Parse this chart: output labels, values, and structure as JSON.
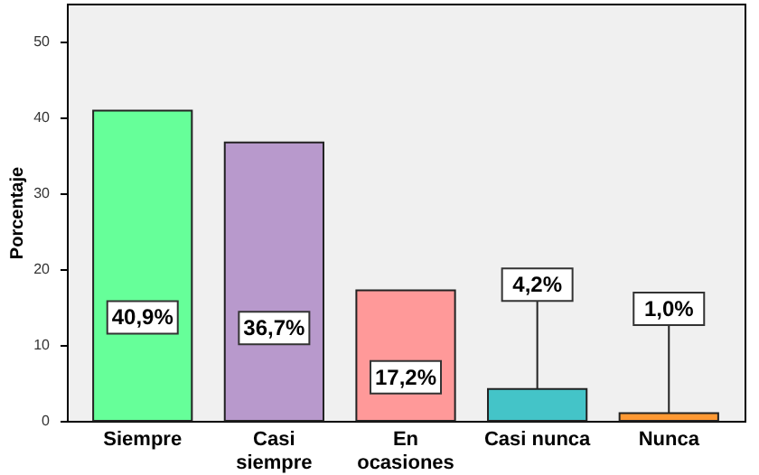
{
  "chart_data": {
    "type": "bar",
    "ylabel": "Porcentaje",
    "categories": [
      "Siempre",
      "Casi siempre",
      "En ocasiones",
      "Casi nunca",
      "Nunca"
    ],
    "values": [
      40.9,
      36.7,
      17.2,
      4.2,
      1.0
    ],
    "colors": [
      "#66ff99",
      "#b899cc",
      "#ff9999",
      "#44c4c8",
      "#ff9933"
    ],
    "value_labels": [
      "40,9%",
      "36,7%",
      "17,2%",
      "4,2%",
      "1,0%"
    ],
    "ylim": [
      0,
      55
    ],
    "yticks": [
      0,
      10,
      20,
      30,
      40,
      50
    ],
    "grid": false
  }
}
